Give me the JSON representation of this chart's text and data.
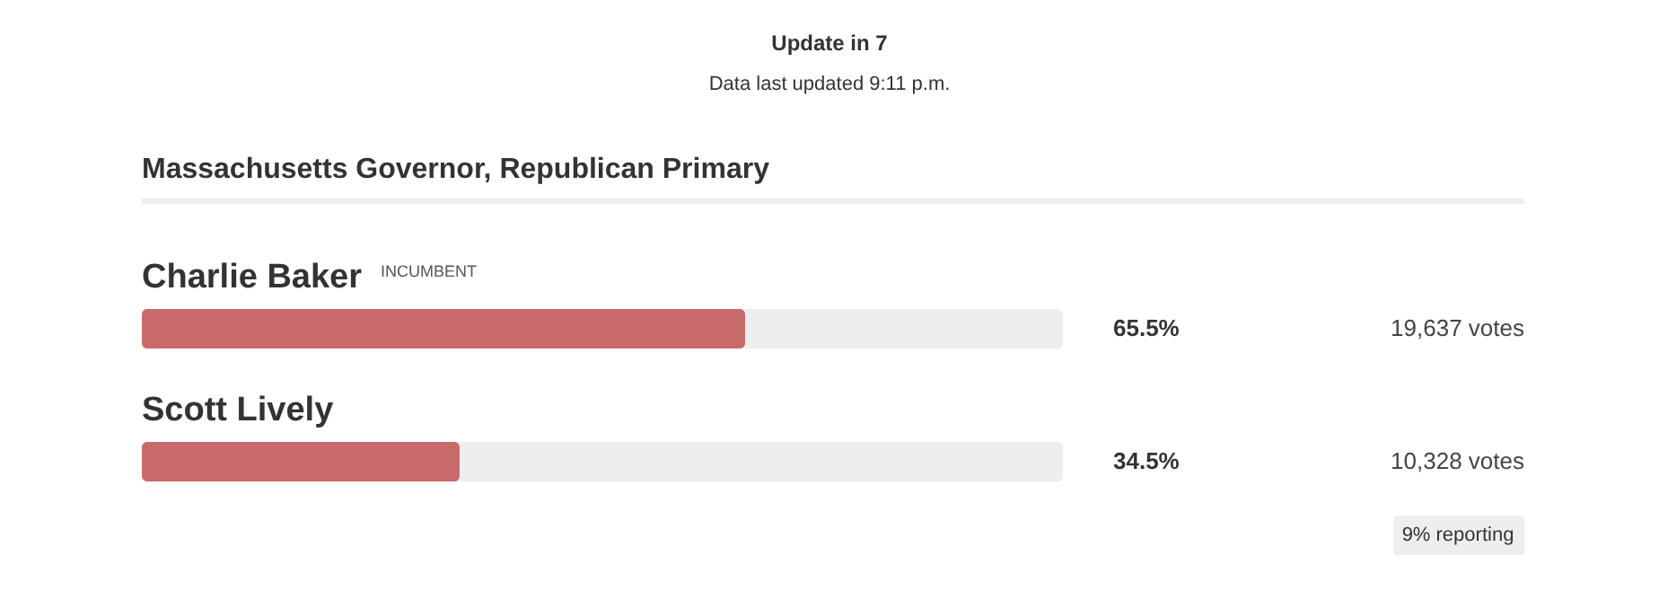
{
  "chart_data": {
    "type": "bar",
    "orientation": "horizontal",
    "title": "Massachusetts Governor, Republican Primary",
    "categories": [
      "Charlie Baker",
      "Scott Lively"
    ],
    "values": [
      65.5,
      34.5
    ],
    "value_labels": [
      "65.5%",
      "34.5%"
    ],
    "color": "#c96a6a",
    "xlim": [
      0,
      100
    ],
    "annotations": [
      "Update in 7",
      "Data last updated 9:11 p.m.",
      "INCUMBENT",
      "19,637 votes",
      "10,328 votes",
      "9% reporting"
    ]
  }
}
